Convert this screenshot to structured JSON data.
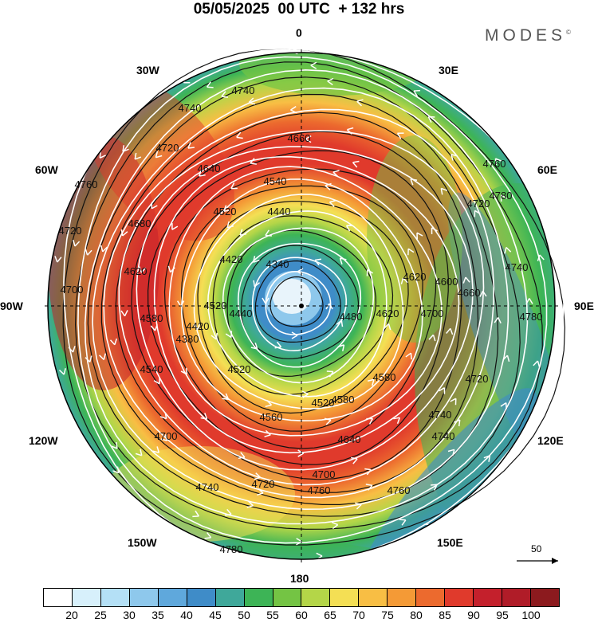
{
  "title": "05/05/2025  00 UTC  + 132 hrs",
  "brand": "MODES",
  "brand_mark": "©",
  "map_type": "polar stereographic, Northern Hemisphere",
  "longitude_labels": {
    "0": "0",
    "30e": "30E",
    "60e": "60E",
    "90e": "90E",
    "120e": "120E",
    "150e": "150E",
    "180": "180",
    "150w": "150W",
    "120w": "120W",
    "90w": "90W",
    "60w": "60W",
    "30w": "30W"
  },
  "contour_labels": [
    "4740",
    "4740",
    "4660",
    "4640",
    "4720",
    "4760",
    "4680",
    "4720",
    "4700",
    "4620",
    "4540",
    "4520",
    "4440",
    "4420",
    "4340",
    "4520",
    "4440",
    "4420",
    "4480",
    "4620",
    "4700",
    "4600",
    "4660",
    "4740",
    "4780",
    "4760",
    "4720",
    "4780",
    "4520",
    "4560",
    "4580",
    "4640",
    "4700",
    "4700",
    "4720",
    "4740",
    "4760",
    "4780",
    "4760",
    "4740",
    "4720",
    "4740",
    "4580",
    "4620",
    "4520",
    "4580",
    "4380",
    "4540"
  ],
  "vector_reference": {
    "label": "50"
  },
  "colorbar": {
    "colors": [
      "#ffffff",
      "#d7f0fb",
      "#b4e0f6",
      "#8ec8ec",
      "#5fa8dc",
      "#3f8cc8",
      "#3fa89a",
      "#3db456",
      "#74c444",
      "#b4d648",
      "#f4df54",
      "#f8be44",
      "#f49a36",
      "#ec6a2e",
      "#e03a2c",
      "#c4202c",
      "#b01c28",
      "#8c1a1e"
    ],
    "ticks": [
      "20",
      "25",
      "30",
      "35",
      "40",
      "45",
      "50",
      "55",
      "60",
      "65",
      "70",
      "75",
      "80",
      "85",
      "90",
      "95",
      "100"
    ]
  }
}
